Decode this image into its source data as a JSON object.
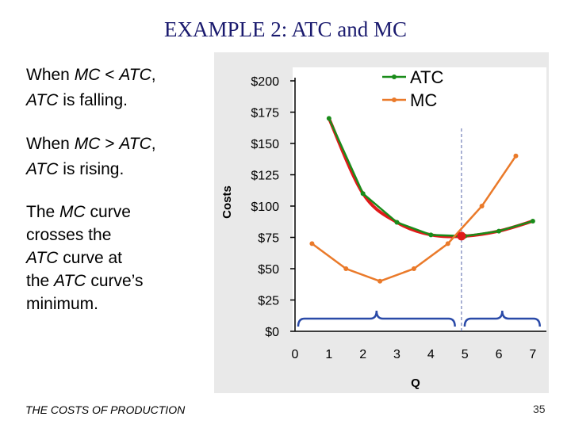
{
  "slide": {
    "title": "EXAMPLE 2:  ATC and MC",
    "footer": "THE COSTS OF PRODUCTION",
    "page_number": "35"
  },
  "text": {
    "line1a_pre": "When ",
    "line1a_it": "MC",
    "line1a_mid": " < ",
    "line1a_it2": "ATC",
    "line1a_post": ",",
    "line1b_it": "ATC",
    "line1b_post": " is falling.",
    "line2a_pre": "When ",
    "line2a_it": "MC",
    "line2a_mid": " > ",
    "line2a_it2": "ATC",
    "line2a_post": ",",
    "line2b_it": "ATC",
    "line2b_post": " is rising.",
    "line3a_pre": "The ",
    "line3a_it": "MC",
    "line3a_post": " curve",
    "line3b": "crosses the",
    "line3c_it": "ATC",
    "line3c_post": " curve at",
    "line3d_pre": "the ",
    "line3d_it": "ATC",
    "line3d_post": " curve’s",
    "line3e": "minimum."
  },
  "chart_data": {
    "type": "line",
    "xlabel": "Q",
    "ylabel": "Costs",
    "x_ticks": [
      "0",
      "1",
      "2",
      "3",
      "4",
      "5",
      "6",
      "7"
    ],
    "y_ticks": [
      "$0",
      "$25",
      "$50",
      "$75",
      "$100",
      "$125",
      "$150",
      "$175",
      "$200"
    ],
    "xlim": [
      0,
      7.4
    ],
    "ylim": [
      0,
      200
    ],
    "legend_position": "top-right",
    "series": [
      {
        "name": "ATC",
        "color": "#1a8c1a",
        "x": [
          1,
          2,
          3,
          4,
          5,
          6,
          7
        ],
        "y": [
          170,
          110,
          87,
          77,
          76,
          80,
          88
        ]
      },
      {
        "name": "MC",
        "color": "#ea7a2a",
        "x": [
          0.5,
          1.5,
          2.5,
          3.5,
          4.5,
          5.5,
          6.5
        ],
        "y": [
          70,
          50,
          40,
          50,
          70,
          100,
          140
        ]
      }
    ],
    "annotations": {
      "highlight_curve_color": "#e01a1a",
      "intersection_point": {
        "x": 4.9,
        "y": 76
      },
      "reference_line_x": 4.9,
      "brace_color": "#2a4aa8",
      "braces": [
        {
          "from": 0,
          "to": 4.8
        },
        {
          "from": 4.9,
          "to": 7.3
        }
      ]
    }
  }
}
